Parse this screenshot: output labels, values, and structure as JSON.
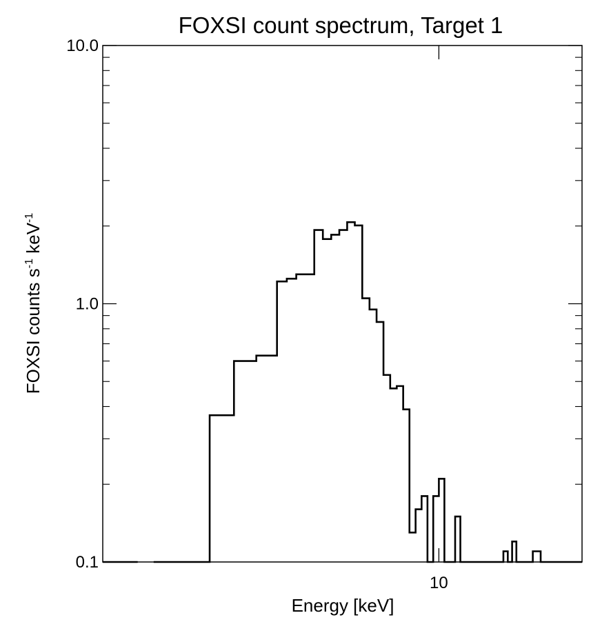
{
  "chart_data": {
    "type": "line",
    "title": "FOXSI count spectrum, Target 1",
    "xlabel": "Energy [keV]",
    "ylabel": {
      "prefix": "FOXSI counts s",
      "sup1": "-1",
      "middle": " keV",
      "sup2": "-1"
    },
    "x_scale": "log",
    "y_scale": "log",
    "xlim": [
      3.0,
      16.7
    ],
    "ylim": [
      0.1,
      10.0
    ],
    "x_tick_labels": [
      {
        "value": 10,
        "label": "10"
      }
    ],
    "y_tick_labels": [
      {
        "value": 0.1,
        "label": "0.1"
      },
      {
        "value": 1.0,
        "label": "1.0"
      },
      {
        "value": 10.0,
        "label": "10.0"
      }
    ],
    "grid": false,
    "legend": "none",
    "line_color": "#000000",
    "series": [
      {
        "bin_edges": [
          3.0,
          3.4,
          3.6,
          4.0,
          4.4,
          4.6,
          4.8,
          5.0,
          5.2,
          5.4,
          5.6,
          5.8,
          6.0,
          6.2,
          6.4,
          6.6,
          6.8,
          7.0,
          7.2,
          7.4,
          7.6,
          7.8,
          8.0,
          8.2,
          8.4,
          8.6,
          8.8,
          9.0,
          9.2,
          9.4,
          9.6,
          9.8,
          10.0,
          10.2,
          10.4,
          10.6,
          10.8,
          11.0,
          11.4,
          11.6,
          11.8,
          12.0,
          12.2,
          12.4,
          12.6,
          12.8,
          13.0,
          13.2,
          13.4,
          13.6,
          14.0,
          14.4,
          14.6,
          14.8,
          15.0,
          15.2,
          15.4,
          15.6,
          15.8,
          16.0,
          16.2,
          16.7
        ],
        "values": [
          0.1,
          null,
          0.1,
          0.1,
          0.37,
          0.37,
          0.6,
          0.6,
          0.63,
          0.63,
          1.22,
          1.25,
          1.3,
          1.3,
          1.93,
          1.78,
          1.85,
          1.93,
          2.07,
          2.01,
          1.05,
          0.95,
          0.85,
          0.53,
          0.47,
          0.48,
          0.39,
          0.13,
          0.16,
          0.18,
          0.1,
          0.18,
          0.21,
          0.1,
          0.1,
          0.15,
          0.1,
          0.1,
          0.1,
          0.1,
          0.1,
          0.1,
          0.1,
          0.1,
          0.11,
          0.1,
          0.12,
          0.1,
          0.1,
          0.1,
          0.11,
          0.1,
          0.1,
          0.1,
          0.1,
          0.1,
          0.1,
          0.1,
          0.1,
          0.1,
          0.1
        ]
      }
    ]
  }
}
